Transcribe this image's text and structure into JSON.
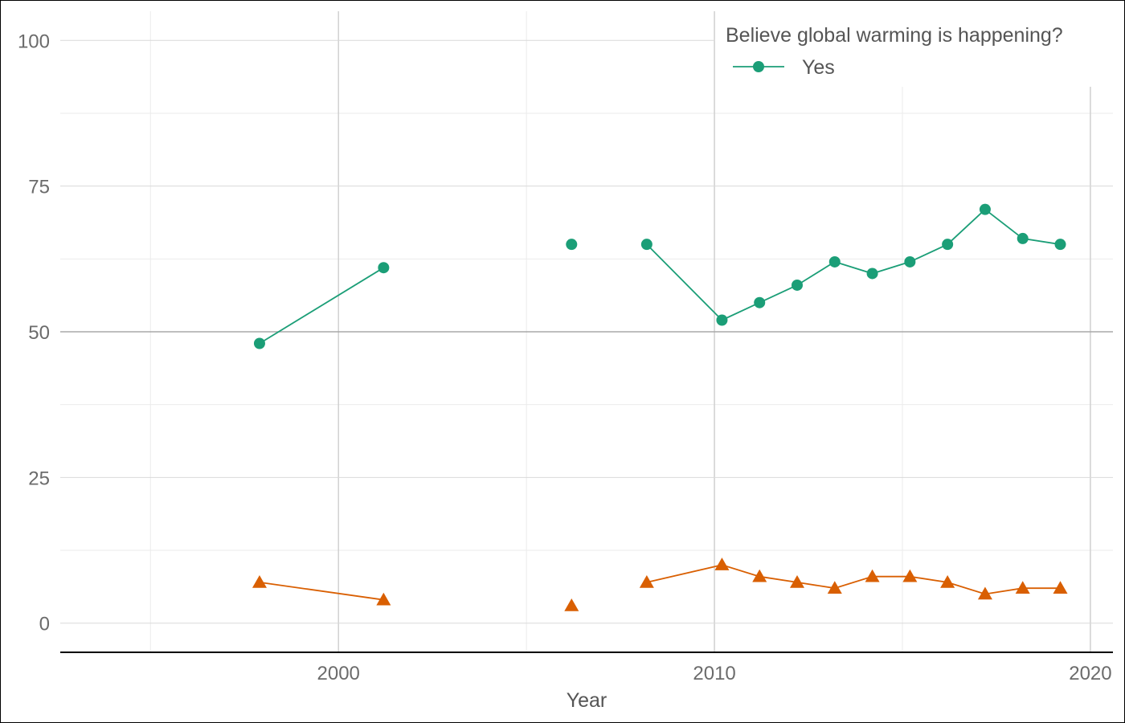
{
  "chart_data": {
    "type": "line",
    "xlabel": "Year",
    "ylabel": "",
    "xlim": [
      1992.6,
      2020.6
    ],
    "ylim": [
      -5,
      105
    ],
    "x_ticks_major": [
      2000,
      2010,
      2020
    ],
    "x_ticks_minor": [
      1995,
      2005,
      2015
    ],
    "y_ticks": [
      0,
      25,
      50,
      75,
      100
    ],
    "y_ticks_minor": [
      12.5,
      37.5,
      62.5,
      87.5
    ],
    "reference_line_y": 50,
    "grid": true,
    "legend": {
      "title": "Believe global warming is happening?",
      "placement": "top-right",
      "entries": [
        "Yes"
      ]
    },
    "series": [
      {
        "name": "Yes",
        "color": "#1b9e77",
        "marker": "circle",
        "segments": [
          [
            [
              1997.9,
              48
            ],
            [
              2001.2,
              61
            ]
          ],
          [
            [
              2006.2,
              65
            ]
          ],
          [
            [
              2008.2,
              65
            ],
            [
              2010.2,
              52
            ],
            [
              2011.2,
              55
            ],
            [
              2012.2,
              58
            ],
            [
              2013.2,
              62
            ],
            [
              2014.2,
              60
            ],
            [
              2015.2,
              62
            ],
            [
              2016.2,
              65
            ],
            [
              2017.2,
              71
            ],
            [
              2018.2,
              66
            ],
            [
              2019.2,
              65
            ]
          ]
        ]
      },
      {
        "color": "#d95f02",
        "marker": "triangle",
        "segments": [
          [
            [
              1997.9,
              7
            ],
            [
              2001.2,
              4
            ]
          ],
          [
            [
              2006.2,
              3
            ]
          ],
          [
            [
              2008.2,
              7
            ],
            [
              2010.2,
              10
            ],
            [
              2011.2,
              8
            ],
            [
              2012.2,
              7
            ],
            [
              2013.2,
              6
            ],
            [
              2014.2,
              8
            ],
            [
              2015.2,
              8
            ],
            [
              2016.2,
              7
            ],
            [
              2017.2,
              5
            ],
            [
              2018.2,
              6
            ],
            [
              2019.2,
              6
            ]
          ]
        ]
      }
    ]
  }
}
